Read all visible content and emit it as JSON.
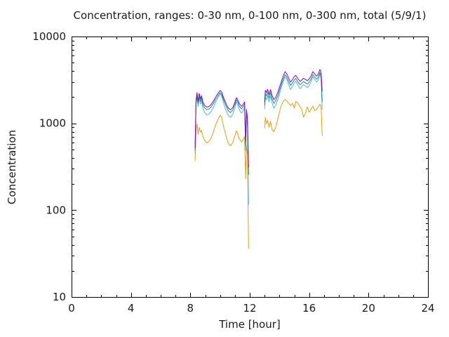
{
  "colors": {
    "background": "#ffffff",
    "axis": "#000000",
    "series_violet": "#9400d3",
    "series_green": "#009e73",
    "series_sky_blue": "#56b4e9",
    "series_orange": "#e69f00"
  },
  "chart_data": {
    "type": "line",
    "title": "Concentration, ranges: 0-30 nm, 0-100 nm, 0-300 nm, total (5/9/1)",
    "xlabel": "Time [hour]",
    "ylabel": "Concentration",
    "legend": "none",
    "grid": false,
    "xlim": [
      0,
      24
    ],
    "xticks": [
      0,
      4,
      8,
      12,
      16,
      20,
      24
    ],
    "x_minor_step": 1,
    "yscale": "log",
    "ylim": [
      10,
      10000
    ],
    "yticks": [
      10,
      100,
      1000,
      10000
    ],
    "x_segments": [
      [
        8.32,
        8.38,
        8.45,
        8.52,
        8.6,
        8.68,
        8.75,
        8.85,
        8.95,
        9.1,
        9.25,
        9.4,
        9.55,
        9.7,
        9.85,
        10.0,
        10.1,
        10.25,
        10.4,
        10.55,
        10.7,
        10.85,
        11.0,
        11.1,
        11.2,
        11.3,
        11.45,
        11.55,
        11.65,
        11.72,
        11.78,
        11.85,
        11.92
      ],
      [
        13.0,
        13.05,
        13.12,
        13.2,
        13.3,
        13.4,
        13.5,
        13.62,
        13.75,
        13.88,
        14.0,
        14.12,
        14.25,
        14.38,
        14.5,
        14.62,
        14.75,
        14.88,
        15.0,
        15.1,
        15.25,
        15.4,
        15.5,
        15.62,
        15.75,
        15.88,
        16.0,
        16.12,
        16.25,
        16.38,
        16.5,
        16.62,
        16.72,
        16.8,
        16.88
      ]
    ],
    "series": [
      {
        "name": "violet",
        "color": "#9400d3",
        "values_segments": [
          [
            520,
            1870,
            2260,
            1790,
            2210,
            1910,
            2090,
            1750,
            1620,
            1540,
            1560,
            1650,
            1800,
            2000,
            2200,
            2390,
            2300,
            1950,
            1700,
            1500,
            1430,
            1520,
            1750,
            1980,
            1850,
            1680,
            1570,
            1650,
            1760,
            620,
            1450,
            1150,
            310
          ],
          [
            1750,
            2400,
            2250,
            2470,
            2150,
            2450,
            2100,
            1870,
            2000,
            2250,
            2600,
            3000,
            3500,
            3940,
            3700,
            3300,
            2980,
            3200,
            3450,
            3570,
            3250,
            3040,
            3150,
            3300,
            3200,
            3100,
            3250,
            3500,
            3940,
            3700,
            3500,
            3700,
            4170,
            3900,
            2330
          ]
        ]
      },
      {
        "name": "green",
        "color": "#009e73",
        "values_segments": [
          [
            490,
            1760,
            2110,
            1680,
            2070,
            1790,
            1960,
            1640,
            1510,
            1440,
            1460,
            1550,
            1690,
            1880,
            2070,
            2260,
            2170,
            1830,
            1590,
            1400,
            1330,
            1420,
            1640,
            1870,
            1740,
            1570,
            1470,
            1550,
            1660,
            560,
            1350,
            1050,
            255
          ],
          [
            1620,
            2200,
            2060,
            2270,
            1960,
            2250,
            1910,
            1700,
            1820,
            2060,
            2380,
            2760,
            3220,
            3630,
            3400,
            3020,
            2720,
            2930,
            3160,
            3280,
            2980,
            2780,
            2890,
            3030,
            2930,
            2840,
            2980,
            3220,
            3630,
            3400,
            3220,
            3400,
            3850,
            3590,
            1760
          ]
        ]
      },
      {
        "name": "sky-blue",
        "color": "#56b4e9",
        "values_segments": [
          [
            450,
            1660,
            1990,
            1550,
            1940,
            1660,
            1820,
            1480,
            1340,
            1250,
            1270,
            1370,
            1530,
            1740,
            1950,
            2180,
            2070,
            1670,
            1410,
            1230,
            1170,
            1270,
            1500,
            1760,
            1610,
            1420,
            1310,
            1400,
            1530,
            490,
            1240,
            900,
            115
          ],
          [
            1460,
            2010,
            1860,
            2080,
            1760,
            2060,
            1710,
            1490,
            1620,
            1860,
            2180,
            2550,
            3010,
            3430,
            3180,
            2770,
            2450,
            2680,
            2930,
            3060,
            2730,
            2510,
            2630,
            2790,
            2680,
            2580,
            2730,
            2990,
            3430,
            3180,
            2990,
            3180,
            3650,
            3380,
            1430
          ]
        ]
      },
      {
        "name": "orange",
        "color": "#e69f00",
        "values_segments": [
          [
            370,
            820,
            990,
            750,
            900,
            790,
            830,
            700,
            640,
            595,
            615,
            680,
            790,
            950,
            1100,
            1240,
            1180,
            900,
            720,
            590,
            550,
            600,
            720,
            820,
            750,
            660,
            610,
            650,
            700,
            230,
            560,
            430,
            36
          ],
          [
            880,
            1170,
            990,
            1080,
            900,
            1050,
            850,
            800,
            900,
            1100,
            1350,
            1600,
            1780,
            1870,
            1800,
            1700,
            1600,
            1700,
            1500,
            1800,
            1700,
            1550,
            1450,
            1180,
            1300,
            1550,
            1340,
            1450,
            1580,
            1400,
            1450,
            1550,
            1650,
            1600,
            720
          ]
        ]
      }
    ]
  }
}
